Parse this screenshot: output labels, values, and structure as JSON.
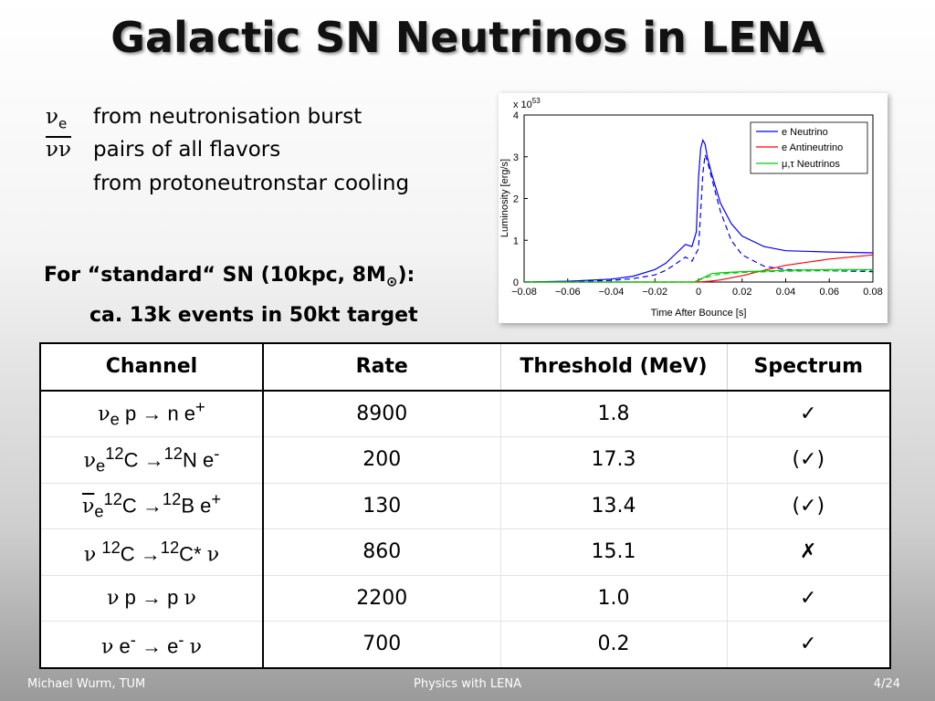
{
  "title": "Galactic SN Neutrinos in LENA",
  "bullets": {
    "line1_symbol": "ν",
    "line1_sub": "e",
    "line1_text": "from neutronisation burst",
    "line2_symbol": "νν",
    "line2_text": "pairs of all flavors",
    "line3_text": "from protoneutronstar cooling"
  },
  "standard": {
    "line1_pre": "For “standard“ SN (10kpc, 8M",
    "line1_sym": "⊙",
    "line1_post": "):",
    "line2": "ca. 13k events in 50kt target"
  },
  "table": {
    "headers": [
      "Channel",
      "Rate",
      "Threshold (MeV)",
      "Spectrum"
    ],
    "rows": [
      {
        "rate": "8900",
        "threshold": "1.8",
        "spectrum": "✓"
      },
      {
        "rate": "200",
        "threshold": "17.3",
        "spectrum": "(✓)"
      },
      {
        "rate": "130",
        "threshold": "13.4",
        "spectrum": "(✓)"
      },
      {
        "rate": "860",
        "threshold": "15.1",
        "spectrum": "✗"
      },
      {
        "rate": "2200",
        "threshold": "1.0",
        "spectrum": "✓"
      },
      {
        "rate": "700",
        "threshold": "0.2",
        "spectrum": "✓"
      }
    ],
    "channel_parts": {
      "nu": "ν",
      "e": "e",
      "arrow": "→",
      "c12": "12",
      "r1": [
        "p",
        "n e",
        "+"
      ],
      "r2": [
        "C",
        "N e",
        "-"
      ],
      "r3": [
        "C",
        "B e",
        "+"
      ],
      "r4": [
        "C",
        "C*"
      ],
      "r5": [
        "p",
        "p"
      ],
      "r6": [
        "e",
        "-",
        "e"
      ]
    }
  },
  "footer": {
    "left": "Michael Wurm, TUM",
    "center": "Physics with LENA",
    "right": "4/24"
  },
  "chart_data": {
    "type": "line",
    "title": "",
    "xlabel": "Time After Bounce [s]",
    "ylabel": "Luminosity [erg/s]",
    "yscale_label": "x 10",
    "yscale_exp": "53",
    "xlim": [
      -0.08,
      0.08
    ],
    "ylim": [
      0,
      4
    ],
    "xticks": [
      -0.08,
      -0.06,
      -0.04,
      -0.02,
      0,
      0.02,
      0.04,
      0.06,
      0.08
    ],
    "xtick_labels": [
      "−0.08",
      "−0.06",
      "−0.04",
      "−0.02",
      "0",
      "0.02",
      "0.04",
      "0.06",
      "0.08"
    ],
    "yticks": [
      0,
      1,
      2,
      3,
      4
    ],
    "ytick_labels": [
      "0",
      "1",
      "2",
      "3",
      "4"
    ],
    "legend_position": "top-right",
    "colors": {
      "blue": "#0000ff",
      "red": "#ff0000",
      "green": "#00cc00"
    },
    "series": [
      {
        "name": "e Neutrino",
        "color": "#0000ff",
        "style": "solid",
        "x": [
          -0.08,
          -0.06,
          -0.04,
          -0.03,
          -0.02,
          -0.015,
          -0.01,
          -0.006,
          -0.003,
          -0.001,
          0,
          0.001,
          0.002,
          0.003,
          0.004,
          0.006,
          0.01,
          0.015,
          0.02,
          0.03,
          0.04,
          0.06,
          0.08
        ],
        "y": [
          0.0,
          0.02,
          0.07,
          0.14,
          0.3,
          0.45,
          0.7,
          0.9,
          0.85,
          1.2,
          2.5,
          3.2,
          3.4,
          3.3,
          3.0,
          2.6,
          1.9,
          1.4,
          1.1,
          0.85,
          0.75,
          0.72,
          0.7
        ]
      },
      {
        "name": "e Neutrino (dashed)",
        "color": "#0000ff",
        "style": "dashed",
        "x": [
          -0.08,
          -0.06,
          -0.04,
          -0.03,
          -0.02,
          -0.015,
          -0.01,
          -0.006,
          -0.003,
          0,
          0.002,
          0.003,
          0.004,
          0.006,
          0.01,
          0.015,
          0.02,
          0.03,
          0.04,
          0.06,
          0.08
        ],
        "y": [
          0.0,
          0.01,
          0.04,
          0.08,
          0.17,
          0.28,
          0.45,
          0.6,
          0.5,
          0.8,
          2.6,
          3.05,
          2.9,
          2.5,
          1.7,
          1.0,
          0.65,
          0.38,
          0.3,
          0.27,
          0.25
        ]
      },
      {
        "name": "e Antineutrino",
        "color": "#ff0000",
        "style": "solid",
        "x": [
          -0.08,
          0,
          0.005,
          0.01,
          0.02,
          0.03,
          0.04,
          0.06,
          0.08
        ],
        "y": [
          0,
          0,
          0.02,
          0.05,
          0.15,
          0.28,
          0.4,
          0.55,
          0.65
        ]
      },
      {
        "name": "μ,τ Neutrinos",
        "color": "#00cc00",
        "style": "solid",
        "x": [
          -0.08,
          -0.002,
          0.002,
          0.006,
          0.01,
          0.02,
          0.04,
          0.06,
          0.08
        ],
        "y": [
          0,
          0,
          0.1,
          0.2,
          0.22,
          0.25,
          0.28,
          0.3,
          0.3
        ]
      },
      {
        "name": "μ,τ Neutrinos (dashed)",
        "color": "#00cc00",
        "style": "dashed",
        "x": [
          -0.08,
          -0.002,
          0.002,
          0.006,
          0.01,
          0.02,
          0.04,
          0.06,
          0.08
        ],
        "y": [
          0,
          0,
          0.08,
          0.15,
          0.19,
          0.23,
          0.26,
          0.27,
          0.28
        ]
      }
    ]
  }
}
